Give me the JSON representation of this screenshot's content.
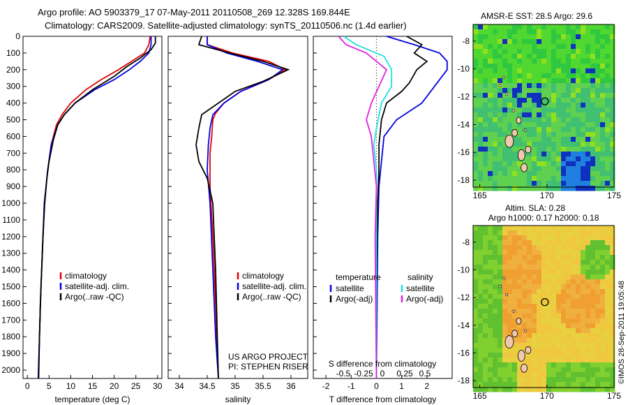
{
  "header": {
    "line1": "Argo profile: AO 5903379_17 07-May-2011 20110508_269 12.328S 169.844E",
    "line2": "Climatology: CARS2009. Satellite-adjusted climatology: synTS_20110506.nc (1.4d earlier)"
  },
  "credit": "©IMOS 28-Sep-2011 19:05:48",
  "colors": {
    "climatology": "#e00000",
    "satellite": "#0000e0",
    "argo": "#000000",
    "salinity_sat": "#20e0e0",
    "salinity_argo": "#e020e0"
  },
  "chart_data": [
    {
      "type": "line",
      "panel": "temperature",
      "xlabel": "temperature (deg C)",
      "ylabel": "",
      "xlim": [
        -1,
        31
      ],
      "ylim": [
        2050,
        0
      ],
      "xticks": [
        0,
        5,
        10,
        15,
        20,
        25,
        30
      ],
      "yticks": [
        0,
        100,
        200,
        300,
        400,
        500,
        600,
        700,
        800,
        900,
        1000,
        1100,
        1200,
        1300,
        1400,
        1500,
        1600,
        1700,
        1800,
        1900,
        2000
      ],
      "legend": [
        "climatology",
        "satellite-adj. clim.",
        "Argo(..raw -QC)"
      ],
      "series": [
        {
          "name": "climatology",
          "color": "#e00000",
          "points": [
            [
              28.3,
              0
            ],
            [
              28,
              50
            ],
            [
              27,
              100
            ],
            [
              24,
              150
            ],
            [
              21,
              200
            ],
            [
              17,
              260
            ],
            [
              13.5,
              320
            ],
            [
              10,
              400
            ],
            [
              8,
              470
            ],
            [
              6.7,
              530
            ],
            [
              5.5,
              650
            ],
            [
              4.7,
              800
            ],
            [
              4.3,
              900
            ],
            [
              3.9,
              1000
            ],
            [
              3.6,
              1200
            ],
            [
              3.3,
              1400
            ],
            [
              3.0,
              1600
            ],
            [
              2.8,
              1800
            ],
            [
              2.5,
              2050
            ]
          ]
        },
        {
          "name": "satellite-adj. clim.",
          "color": "#0000e0",
          "points": [
            [
              28.5,
              0
            ],
            [
              28.5,
              50
            ],
            [
              28,
              100
            ],
            [
              26,
              150
            ],
            [
              23.5,
              200
            ],
            [
              20,
              260
            ],
            [
              15.5,
              320
            ],
            [
              11,
              400
            ],
            [
              8.5,
              470
            ],
            [
              7,
              530
            ],
            [
              5.5,
              650
            ],
            [
              4.7,
              800
            ],
            [
              4.3,
              900
            ],
            [
              3.9,
              1000
            ],
            [
              3.6,
              1200
            ],
            [
              3.3,
              1400
            ],
            [
              3.0,
              1600
            ],
            [
              2.8,
              1800
            ],
            [
              2.5,
              2050
            ]
          ]
        },
        {
          "name": "Argo(..raw -QC)",
          "color": "#000000",
          "points": [
            [
              29.5,
              0
            ],
            [
              29.5,
              40
            ],
            [
              28.5,
              80
            ],
            [
              26,
              130
            ],
            [
              23,
              180
            ],
            [
              20,
              240
            ],
            [
              15,
              320
            ],
            [
              11,
              400
            ],
            [
              8.5,
              470
            ],
            [
              7,
              530
            ],
            [
              6,
              620
            ],
            [
              5,
              750
            ],
            [
              4.5,
              850
            ],
            [
              4.0,
              1000
            ],
            [
              3.6,
              1200
            ],
            [
              3.3,
              1400
            ],
            [
              3.0,
              1600
            ],
            [
              2.8,
              1800
            ],
            [
              2.6,
              2050
            ]
          ]
        }
      ]
    },
    {
      "type": "line",
      "panel": "salinity",
      "xlabel": "salinity",
      "xlim": [
        33.8,
        36.3
      ],
      "ylim": [
        2050,
        0
      ],
      "xticks": [
        34,
        34.5,
        35,
        35.5,
        36
      ],
      "legend": [
        "climatology",
        "satellite-adj. clim.",
        "Argo(..raw -QC)"
      ],
      "annotation": [
        "US ARGO PROJECT",
        "PI: STEPHEN RISER"
      ],
      "series": [
        {
          "name": "climatology",
          "color": "#e00000",
          "points": [
            [
              34.5,
              0
            ],
            [
              34.5,
              50
            ],
            [
              34.95,
              100
            ],
            [
              35.6,
              150
            ],
            [
              35.9,
              200
            ],
            [
              35.6,
              260
            ],
            [
              35.1,
              330
            ],
            [
              34.8,
              400
            ],
            [
              34.65,
              460
            ],
            [
              34.6,
              500
            ],
            [
              34.58,
              600
            ],
            [
              34.55,
              700
            ],
            [
              34.55,
              900
            ],
            [
              34.6,
              1200
            ],
            [
              34.65,
              1600
            ],
            [
              34.7,
              2050
            ]
          ]
        },
        {
          "name": "satellite-adj. clim.",
          "color": "#0000e0",
          "points": [
            [
              34.5,
              0
            ],
            [
              34.5,
              50
            ],
            [
              34.85,
              100
            ],
            [
              35.4,
              150
            ],
            [
              35.85,
              200
            ],
            [
              35.6,
              260
            ],
            [
              35.1,
              330
            ],
            [
              34.8,
              400
            ],
            [
              34.6,
              470
            ],
            [
              34.55,
              550
            ],
            [
              34.52,
              650
            ],
            [
              34.5,
              800
            ],
            [
              34.55,
              1000
            ],
            [
              34.6,
              1400
            ],
            [
              34.65,
              1800
            ],
            [
              34.7,
              2050
            ]
          ]
        },
        {
          "name": "Argo(..raw -QC)",
          "color": "#000000",
          "points": [
            [
              34.4,
              0
            ],
            [
              34.35,
              50
            ],
            [
              34.9,
              100
            ],
            [
              35.5,
              150
            ],
            [
              35.95,
              200
            ],
            [
              35.5,
              270
            ],
            [
              35.0,
              330
            ],
            [
              34.7,
              400
            ],
            [
              34.4,
              470
            ],
            [
              34.35,
              550
            ],
            [
              34.3,
              650
            ],
            [
              34.35,
              750
            ],
            [
              34.5,
              850
            ],
            [
              34.6,
              1000
            ],
            [
              34.65,
              1400
            ],
            [
              34.68,
              1800
            ],
            [
              34.7,
              2050
            ]
          ]
        }
      ]
    },
    {
      "type": "line",
      "panel": "difference",
      "xlabel": "T difference from climatology",
      "xlabel2": "S difference from climatology",
      "xlim": [
        -2.5,
        3.0
      ],
      "ylim": [
        2050,
        0
      ],
      "xticks": [
        -2,
        -1,
        0,
        1,
        2
      ],
      "xticks2": [
        "-0.5",
        "-0.25",
        "0",
        "0.25",
        "0.5"
      ],
      "legend_groups": {
        "temperature": [
          "satellite",
          "Argo(-adj)"
        ],
        "salinity": [
          "satellite",
          "Argo(-adj)"
        ]
      },
      "legend_titles": [
        "temperature",
        "salinity"
      ],
      "series": [
        {
          "name": "satellite",
          "group": "temperature",
          "color": "#0000e0",
          "points": [
            [
              0.4,
              0
            ],
            [
              1.5,
              50
            ],
            [
              2.5,
              100
            ],
            [
              2.8,
              150
            ],
            [
              2.8,
              200
            ],
            [
              2.3,
              300
            ],
            [
              1.8,
              400
            ],
            [
              0.8,
              500
            ],
            [
              0.3,
              600
            ],
            [
              0.2,
              750
            ],
            [
              0.1,
              900
            ],
            [
              0.05,
              1200
            ],
            [
              0.0,
              2050
            ]
          ]
        },
        {
          "name": "Argo(-adj)",
          "group": "temperature",
          "color": "#000000",
          "points": [
            [
              1.2,
              0
            ],
            [
              1.8,
              50
            ],
            [
              1.5,
              100
            ],
            [
              2.0,
              150
            ],
            [
              1.6,
              200
            ],
            [
              1.3,
              280
            ],
            [
              1.0,
              330
            ],
            [
              0.4,
              400
            ],
            [
              0.2,
              500
            ],
            [
              0.1,
              650
            ],
            [
              0.1,
              800
            ],
            [
              0.05,
              1000
            ],
            [
              0.0,
              1500
            ],
            [
              0.0,
              2050
            ]
          ]
        },
        {
          "name": "satellite",
          "group": "salinity",
          "color": "#20e0e0",
          "points": [
            [
              -1.3,
              0
            ],
            [
              -0.8,
              50
            ],
            [
              0.3,
              120
            ],
            [
              0.6,
              200
            ],
            [
              0.6,
              300
            ],
            [
              0.2,
              400
            ],
            [
              0.0,
              550
            ],
            [
              -0.1,
              650
            ],
            [
              0.0,
              800
            ],
            [
              0.0,
              2050
            ]
          ]
        },
        {
          "name": "Argo(-adj)",
          "group": "salinity",
          "color": "#e020e0",
          "points": [
            [
              -1.5,
              0
            ],
            [
              -1.2,
              50
            ],
            [
              -0.4,
              100
            ],
            [
              0.0,
              150
            ],
            [
              0.4,
              200
            ],
            [
              0.1,
              300
            ],
            [
              -0.2,
              400
            ],
            [
              -0.4,
              500
            ],
            [
              -0.2,
              600
            ],
            [
              -0.1,
              750
            ],
            [
              0.0,
              900
            ],
            [
              -0.05,
              1200
            ],
            [
              0.0,
              2050
            ]
          ]
        }
      ]
    },
    {
      "type": "heatmap",
      "panel": "sst_map",
      "title": "AMSR-E SST: 28.5 Argo: 29.6",
      "xlim": [
        164.5,
        175
      ],
      "ylim": [
        -18.5,
        -6.8
      ],
      "xticks": [
        165,
        170,
        175
      ],
      "yticks": [
        -8,
        -10,
        -12,
        -14,
        -16,
        -18
      ],
      "argo_position": [
        169.844,
        -12.328
      ]
    },
    {
      "type": "heatmap",
      "panel": "sla_map",
      "title": [
        "Altim. SLA: 0.28",
        "Argo h1000: 0.17 h2000: 0.18"
      ],
      "xlim": [
        164.5,
        175
      ],
      "ylim": [
        -18.5,
        -6.8
      ],
      "xticks": [
        165,
        170,
        175
      ],
      "yticks": [
        -8,
        -10,
        -12,
        -14,
        -16,
        -18
      ],
      "argo_position": [
        169.844,
        -12.328
      ]
    }
  ]
}
